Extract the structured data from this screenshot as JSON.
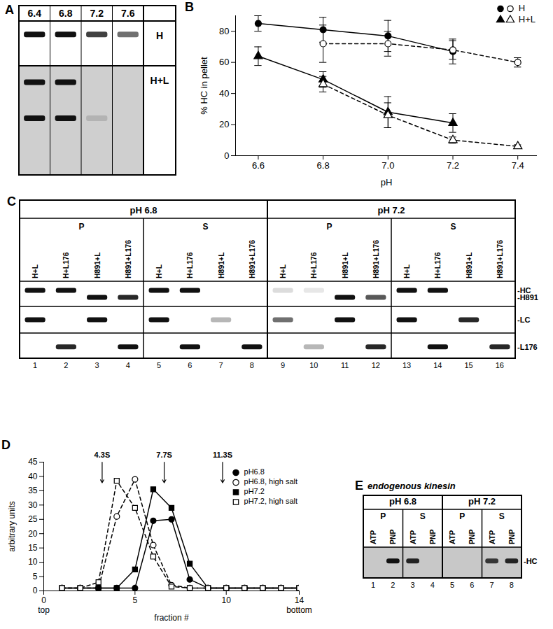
{
  "chart_data": [
    {
      "type": "line",
      "title": "B",
      "x_label": "pH",
      "y_label": "% HC in pellet",
      "xlim": [
        6.53,
        7.46
      ],
      "xticks": [
        6.6,
        6.8,
        {
          "value": 7,
          "label": "7.0"
        },
        7.2,
        7.4
      ],
      "ylim": [
        0,
        90
      ],
      "yticks": [
        0,
        20,
        40,
        60,
        80
      ],
      "legend": "upper right",
      "series": [
        {
          "name": "H",
          "color": "#000000",
          "marker": "circle",
          "line_style": "solid",
          "x": [
            6.6,
            6.8,
            7.0,
            7.2
          ],
          "values": [
            85,
            81,
            77,
            67
          ],
          "errors": [
            5,
            8,
            10,
            8
          ]
        },
        {
          "name": "H",
          "color": "#000000",
          "marker": "circle-open",
          "line_style": "dashed",
          "x": [
            6.8,
            7.0,
            7.2,
            7.4
          ],
          "values": [
            72,
            72,
            68,
            60
          ],
          "errors": [
            12,
            8,
            6,
            3
          ]
        },
        {
          "name": "H+L",
          "color": "#000000",
          "marker": "triangle",
          "line_style": "solid",
          "x": [
            6.6,
            6.8,
            7.0,
            7.2
          ],
          "values": [
            64,
            49,
            28,
            21
          ],
          "errors": [
            6,
            5,
            10,
            6
          ]
        },
        {
          "name": "H+L",
          "color": "#000000",
          "marker": "triangle-open",
          "line_style": "dashed",
          "x": [
            6.8,
            7.0,
            7.2,
            7.4
          ],
          "values": [
            46,
            26,
            10,
            6
          ],
          "errors": [
            5,
            8,
            2,
            1
          ]
        }
      ]
    },
    {
      "type": "line",
      "title": "D",
      "x_label": "fraction #",
      "y_label": "arbitrary units",
      "xlim": [
        0,
        14
      ],
      "xticks": [
        0,
        5,
        10,
        14
      ],
      "ylim": [
        0,
        45
      ],
      "yticks": [
        0,
        5,
        10,
        15,
        20,
        25,
        30,
        35,
        40,
        45
      ],
      "legend": "upper right",
      "axis_annotations": [
        {
          "x": 0,
          "text": "top"
        },
        {
          "x": 14,
          "text": "bottom"
        }
      ],
      "sedimentation_markers": [
        {
          "x": 3.2,
          "label": "4.3S"
        },
        {
          "x": 6.6,
          "label": "7.7S"
        },
        {
          "x": 9.8,
          "label": "11.3S"
        }
      ],
      "x": [
        1,
        2,
        3,
        4,
        5,
        6,
        7,
        8,
        9,
        10,
        11,
        12,
        13,
        14
      ],
      "series": [
        {
          "name": "pH6.8",
          "color": "#000000",
          "marker": "circle",
          "line_style": "solid",
          "values": [
            1,
            1,
            1,
            1,
            1,
            24.5,
            25,
            4,
            1,
            1,
            1,
            1,
            1,
            1
          ]
        },
        {
          "name": "pH6.8, high salt",
          "color": "#000000",
          "marker": "circle-open",
          "line_style": "dashed",
          "values": [
            1,
            1,
            1,
            26,
            39,
            16,
            2,
            1,
            1,
            1,
            1,
            1,
            1,
            1
          ]
        },
        {
          "name": "pH7.2",
          "color": "#000000",
          "marker": "square",
          "line_style": "solid",
          "values": [
            1,
            1,
            1,
            1,
            7.5,
            35.5,
            29,
            9.5,
            1,
            1,
            1,
            1,
            1,
            1
          ]
        },
        {
          "name": "pH7.2, high salt",
          "color": "#000000",
          "marker": "square-open",
          "line_style": "dashed",
          "values": [
            1,
            1,
            3,
            38.5,
            29,
            12,
            1.5,
            1,
            1,
            1,
            1,
            1,
            1,
            1
          ]
        }
      ]
    }
  ],
  "gels": [
    {
      "title": "A",
      "columns": [
        "6.4",
        "6.8",
        "7.2",
        "7.6"
      ],
      "rows": [
        {
          "label": "H",
          "tracks": [
            [
              1,
              1,
              0.8,
              0.6
            ]
          ]
        },
        {
          "label": "H+L",
          "tracks": [
            [
              1,
              1,
              0,
              0
            ],
            [
              1,
              1,
              0.15,
              0
            ]
          ]
        }
      ]
    },
    {
      "title": "C",
      "groups": [
        "pH 6.8",
        "pH 7.2"
      ],
      "subgroups": [
        "P",
        "S"
      ],
      "lanes": [
        "H+L",
        "H+L176",
        "H891+L",
        "H891+L176",
        "H+L",
        "H+L176",
        "H891+L",
        "H891+L176",
        "H+L",
        "H+L176",
        "H891+L",
        "H891+L176",
        "H+L",
        "H+L176",
        "H891+L",
        "H891+L176"
      ],
      "lane_numbers": [
        1,
        2,
        3,
        4,
        5,
        6,
        7,
        8,
        9,
        10,
        11,
        12,
        13,
        14,
        15,
        16
      ],
      "strips": [
        {
          "tracks": [
            {
              "label": "-HC",
              "bands": [
                1,
                1,
                0,
                0,
                1,
                1,
                0,
                0,
                0.15,
                0.1,
                0,
                0,
                1,
                1,
                0,
                0
              ]
            },
            {
              "label": "-H891",
              "bands": [
                0,
                0,
                1,
                0.9,
                0,
                0,
                0,
                0,
                0,
                0,
                1,
                0.7,
                0,
                0,
                0,
                0
              ]
            }
          ]
        },
        {
          "tracks": [
            {
              "label": "-LC",
              "bands": [
                1,
                0,
                1,
                0,
                1,
                0,
                0.3,
                0,
                0.6,
                0,
                1,
                0,
                1,
                0,
                0.9,
                0
              ]
            }
          ]
        },
        {
          "tracks": [
            {
              "label": "-L176",
              "bands": [
                0,
                0.9,
                0,
                1,
                0,
                1,
                0,
                1,
                0,
                0.3,
                0,
                0.9,
                0,
                1,
                0,
                0.9
              ]
            }
          ]
        }
      ]
    },
    {
      "title": "E",
      "subtitle": "endogenous kinesin",
      "groups": [
        "pH 6.8",
        "pH 7.2"
      ],
      "subgroups": [
        "P",
        "S"
      ],
      "lanes": [
        "ATP",
        "PNP",
        "ATP",
        "PNP",
        "ATP",
        "PNP",
        "ATP",
        "PNP"
      ],
      "lane_numbers": [
        1,
        2,
        3,
        4,
        5,
        6,
        7,
        8
      ],
      "strips": [
        {
          "tracks": [
            {
              "label": "-HC",
              "bands": [
                0,
                1,
                0.9,
                0,
                0,
                0,
                0.8,
                0.9
              ]
            }
          ]
        }
      ]
    }
  ]
}
